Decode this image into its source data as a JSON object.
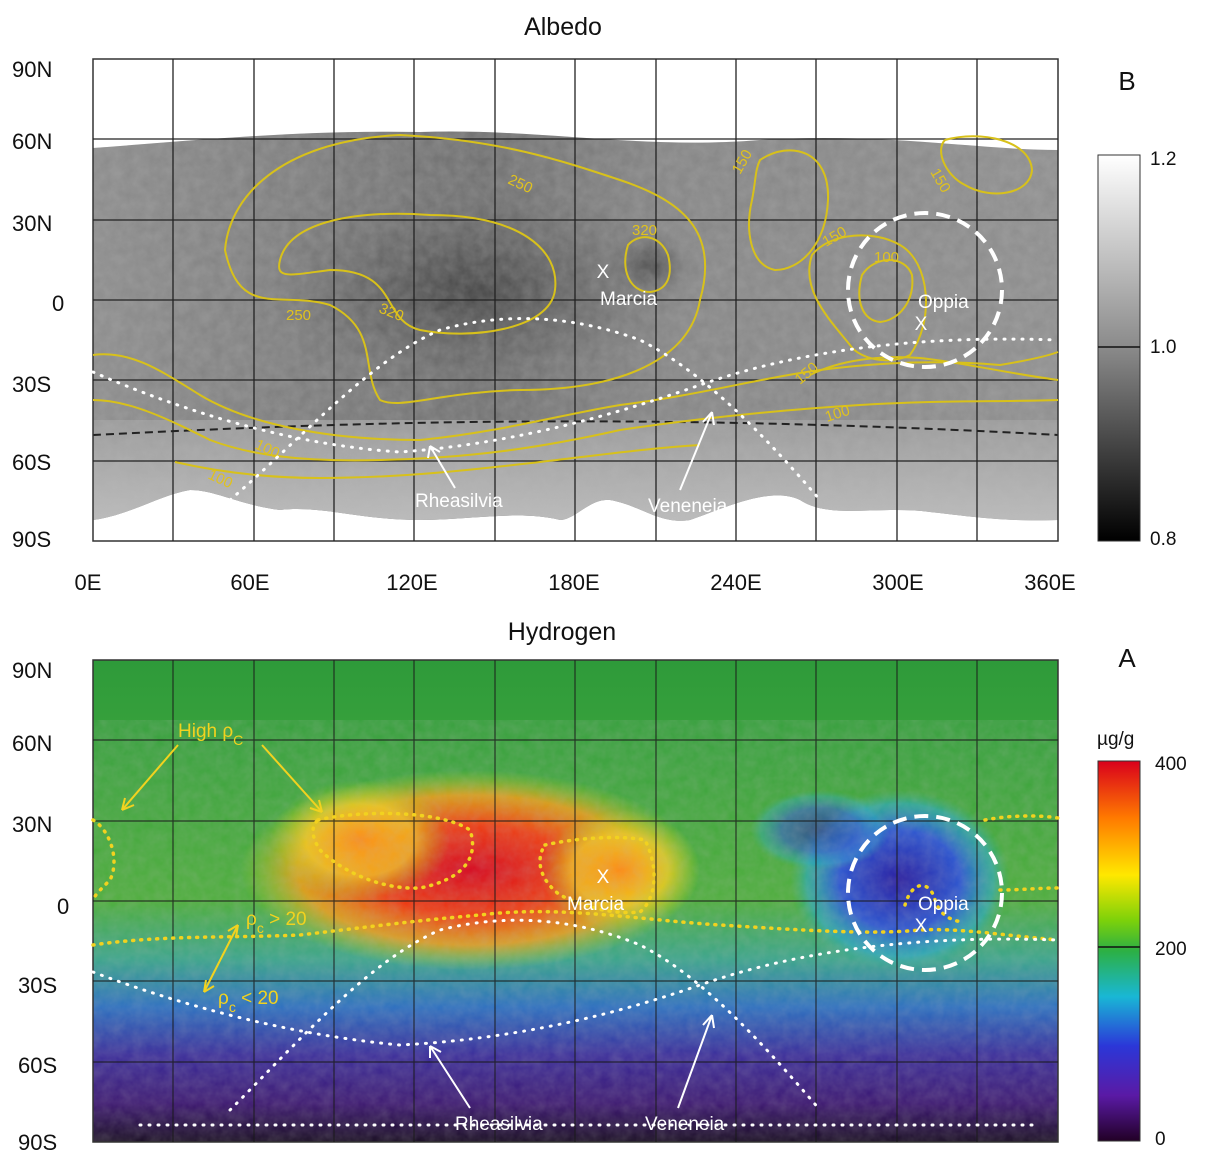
{
  "albedo": {
    "title": "Albedo",
    "panel": "B",
    "lat_labels": [
      "90N",
      "60N",
      "30N",
      "0",
      "30S",
      "60S",
      "90S"
    ],
    "lon_labels": [
      "0E",
      "60E",
      "120E",
      "180E",
      "240E",
      "300E",
      "360E"
    ],
    "colorbar": {
      "max": "1.2",
      "mid": "1.0",
      "min": "0.8"
    },
    "contour_labels": [
      "250",
      "320",
      "320",
      "250",
      "150",
      "150",
      "150",
      "100",
      "150",
      "100",
      "100",
      "100"
    ],
    "features": {
      "marcia": "Marcia",
      "oppia": "Oppia",
      "rheasilvia": "Rheasilvia",
      "veneneia": "Veneneia"
    },
    "colors": {
      "contour": "#d8c11a"
    }
  },
  "hydrogen": {
    "title": "Hydrogen",
    "panel": "A",
    "lat_labels": [
      "90N",
      "60N",
      "30N",
      "0",
      "30S",
      "60S",
      "90S"
    ],
    "colorbar": {
      "unit": "µg/g",
      "max": "400",
      "mid": "200",
      "min": "0"
    },
    "annotations": {
      "high": "High ρ",
      "high_sub": "C",
      "gt": "ρ",
      "gt_sub": "c",
      "gt_val": " > 20",
      "lt": "ρ",
      "lt_sub": "c",
      "lt_val": " < 20"
    },
    "features": {
      "marcia": "Marcia",
      "oppia": "Oppia",
      "rheasilvia": "Rheasilvia",
      "veneneia": "Veneneia"
    },
    "colors": {
      "annotation": "#f2d21f"
    }
  }
}
